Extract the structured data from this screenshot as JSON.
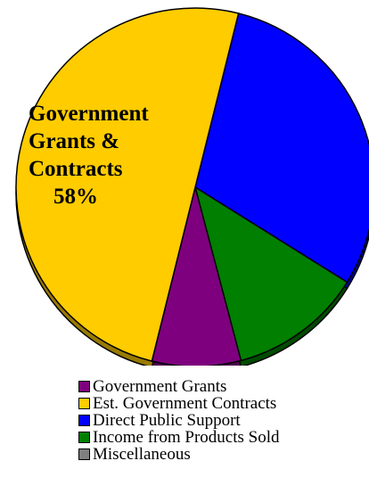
{
  "chart_data": {
    "type": "pie",
    "title": "",
    "slices": [
      {
        "label": "Government Grants",
        "value": 8,
        "color": "#7f007f"
      },
      {
        "label": "Est. Government Contracts",
        "value": 50,
        "color": "#ffcc00"
      },
      {
        "label": "Direct Public Support",
        "value": 30,
        "color": "#0000ff"
      },
      {
        "label": "Income from Products Sold",
        "value": 12,
        "color": "#007f00"
      },
      {
        "label": "Miscellaneous",
        "value": 0,
        "color": "#808080"
      }
    ],
    "annotation": {
      "lines": [
        "Government",
        "Grants &",
        "Contracts"
      ],
      "percent": "58%"
    },
    "legend_position": "bottom"
  }
}
